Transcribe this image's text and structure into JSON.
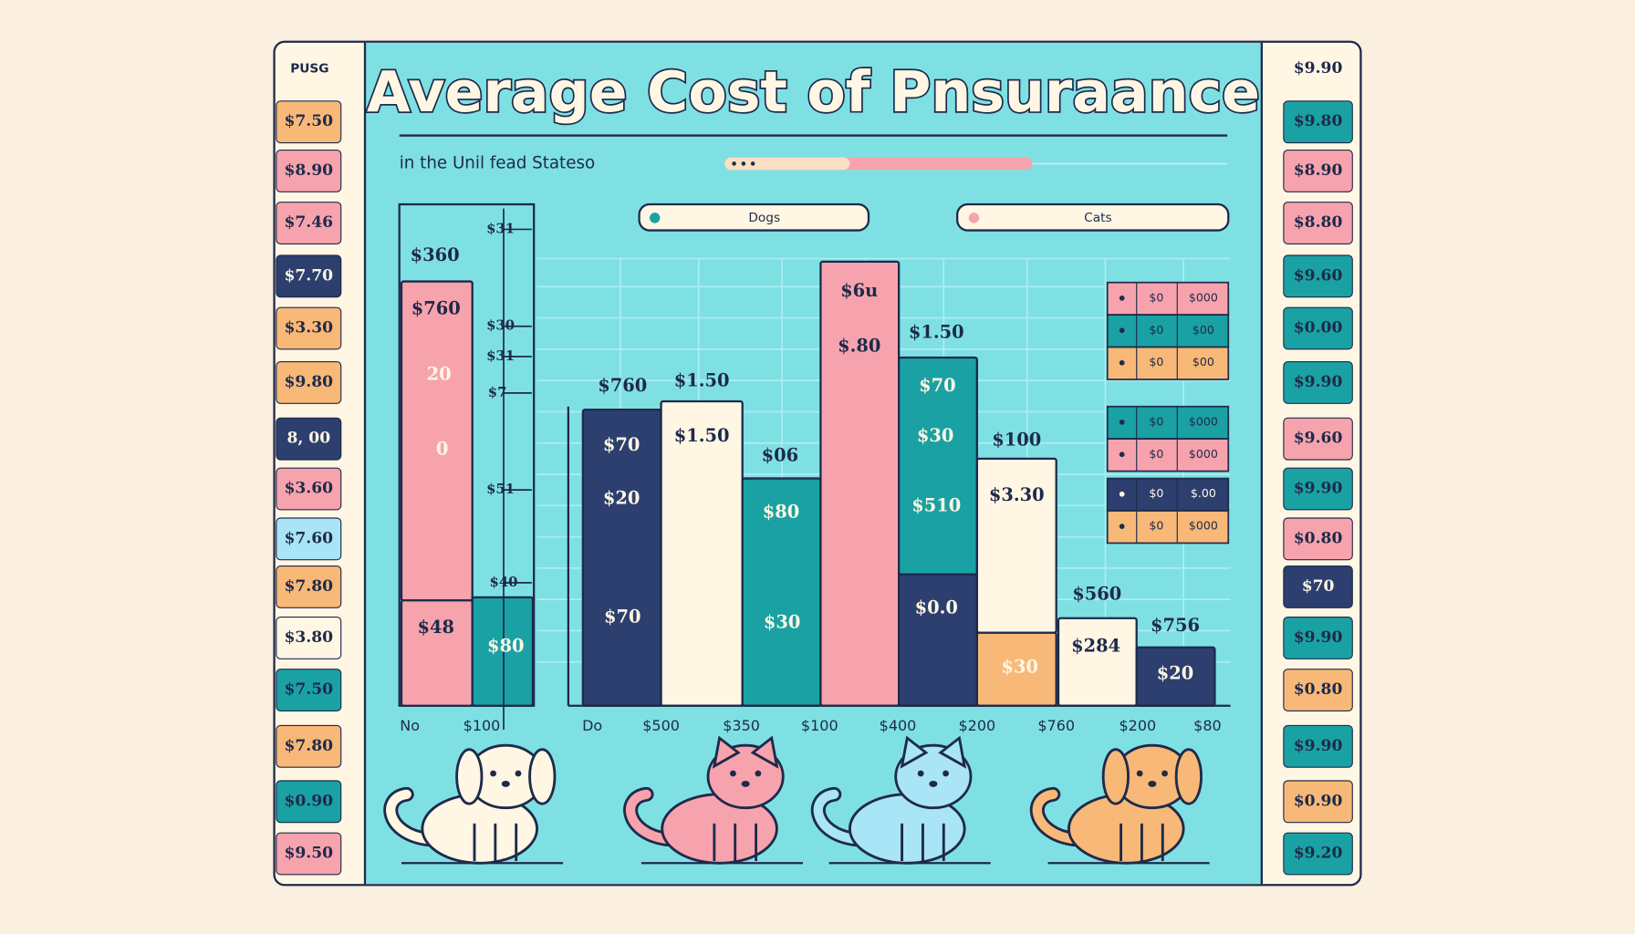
{
  "header": {
    "title": "Average Cost of Pnsuraance",
    "subtitle": "in the Unil fead Stateso"
  },
  "legend": [
    "Dogs",
    "Cats"
  ],
  "left_sidebar": {
    "header": "PUSG",
    "items": [
      "$7.50",
      "$8.90",
      "$7.46",
      "$7.70",
      "$3.30",
      "$9.80",
      "8, 00",
      "$3.60",
      "$7.60",
      "$7.80",
      "$3.80",
      "$7.50",
      "$7.80",
      "$0.90",
      "$9.50"
    ]
  },
  "right_sidebar": {
    "header": "$9.90",
    "items": [
      "$9.80",
      "$8.90",
      "$8.80",
      "$9.60",
      "$0.00",
      "$9.90",
      "$9.60",
      "$9.90",
      "$0.80",
      "$70",
      "$9.90",
      "$0.80",
      "$9.90",
      "$0.90",
      "$9.20"
    ]
  },
  "axis_labels": [
    "$31",
    "$30",
    "$31",
    "$7",
    "$51",
    "$40"
  ],
  "bar_labels": [
    "$360",
    "$760",
    "20",
    "0",
    "$48",
    "$80",
    "$760",
    "$70",
    "$20",
    "$70",
    "$1.50",
    "$1.50",
    "$06",
    "$80",
    "$30",
    "$6u",
    "$.80",
    "$1.50",
    "$70",
    "$30",
    "$510",
    "$0.0",
    "$100",
    "$3.30",
    "$30",
    "$560",
    "$284",
    "$756",
    "$20"
  ],
  "x_labels": [
    "No",
    "$100",
    "Do",
    "$500",
    "$350",
    "$100",
    "$400",
    "$200",
    "$760",
    "$200",
    "$80"
  ],
  "mini_tables": [
    [
      [
        "$0",
        "$000"
      ],
      [
        "$0",
        "$00"
      ],
      [
        "$0",
        "$00"
      ]
    ],
    [
      [
        "$0",
        "$000"
      ],
      [
        "$0",
        "$000"
      ]
    ],
    [
      [
        "$0",
        "$.00"
      ],
      [
        "$0",
        "$000"
      ]
    ]
  ]
}
